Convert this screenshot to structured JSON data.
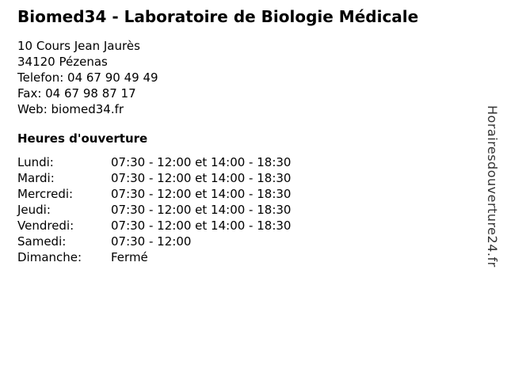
{
  "business": {
    "title": "Biomed34 - Laboratoire de Biologie Médicale",
    "address_line1": "10 Cours Jean Jaurès",
    "address_line2": "34120 Pézenas",
    "phone_line": "Telefon: 04 67 90 49 49",
    "fax_line": "Fax: 04 67 98 87 17",
    "web_line": "Web: biomed34.fr"
  },
  "hours": {
    "heading": "Heures d'ouverture",
    "rows": [
      {
        "day": "Lundi:",
        "time": "07:30 - 12:00 et 14:00 - 18:30"
      },
      {
        "day": "Mardi:",
        "time": "07:30 - 12:00 et 14:00 - 18:30"
      },
      {
        "day": "Mercredi:",
        "time": "07:30 - 12:00 et 14:00 - 18:30"
      },
      {
        "day": "Jeudi:",
        "time": "07:30 - 12:00 et 14:00 - 18:30"
      },
      {
        "day": "Vendredi:",
        "time": "07:30 - 12:00 et 14:00 - 18:30"
      },
      {
        "day": "Samedi:",
        "time": "07:30 - 12:00"
      },
      {
        "day": "Dimanche:",
        "time": "Fermé"
      }
    ]
  },
  "watermark": "Horairesdouverture24.fr",
  "colors": {
    "background": "#ffffff",
    "text": "#000000",
    "watermark_text": "#333333"
  }
}
